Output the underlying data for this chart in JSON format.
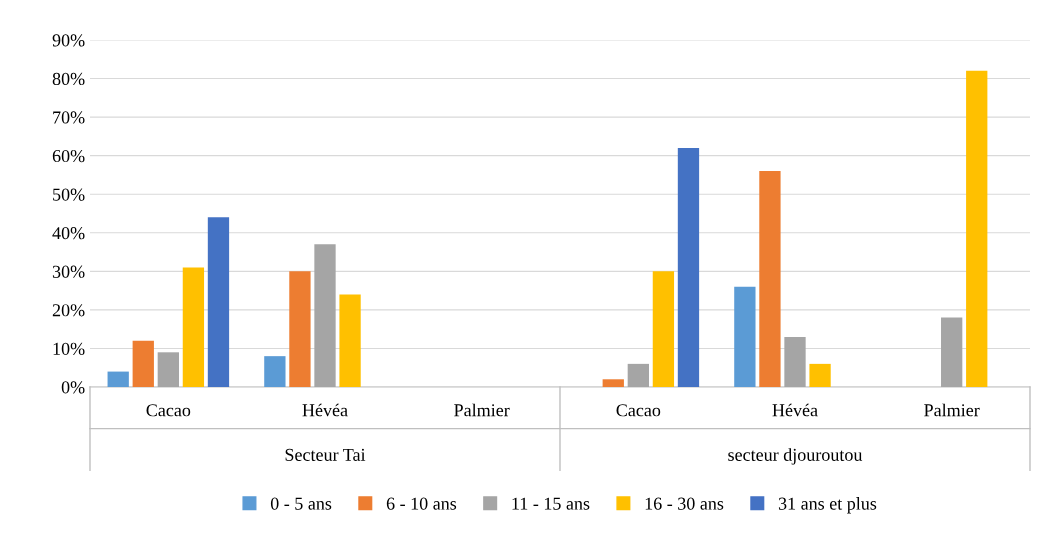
{
  "chart_data": {
    "type": "bar",
    "categories": [
      "Cacao",
      "Hévéa",
      "Palmier",
      "Cacao",
      "Hévéa",
      "Palmier"
    ],
    "annotations": [
      "Secteur Tai",
      "secteur djouroutou"
    ],
    "series": [
      {
        "name": "0 - 5 ans",
        "color": "#5b9bd5",
        "values": [
          4,
          8,
          0,
          0,
          26,
          0
        ]
      },
      {
        "name": "6 - 10 ans",
        "color": "#ed7d31",
        "values": [
          12,
          30,
          0,
          2,
          56,
          0
        ]
      },
      {
        "name": "11 - 15 ans",
        "color": "#a5a5a5",
        "values": [
          9,
          37,
          0,
          6,
          13,
          18
        ]
      },
      {
        "name": "16 - 30 ans",
        "color": "#ffc000",
        "values": [
          31,
          24,
          0,
          30,
          6,
          82
        ]
      },
      {
        "name": "31 ans et plus",
        "color": "#4472c4",
        "values": [
          44,
          0,
          0,
          62,
          0,
          0
        ]
      }
    ],
    "ylim": [
      0,
      90
    ],
    "yticks": [
      {
        "value": 0,
        "label": "0%"
      },
      {
        "value": 10,
        "label": "10%"
      },
      {
        "value": 20,
        "label": "20%"
      },
      {
        "value": 30,
        "label": "30%"
      },
      {
        "value": 40,
        "label": "40%"
      },
      {
        "value": 50,
        "label": "50%"
      },
      {
        "value": 60,
        "label": "60%"
      },
      {
        "value": 70,
        "label": "70%"
      },
      {
        "value": 80,
        "label": "80%"
      },
      {
        "value": 90,
        "label": "90%"
      }
    ],
    "grid": "y",
    "legend": "bottom"
  }
}
